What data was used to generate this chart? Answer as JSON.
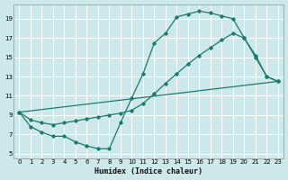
{
  "xlabel": "Humidex (Indice chaleur)",
  "bg_color": "#cce8ea",
  "grid_color": "#ffffff",
  "line_color": "#1e7a6d",
  "xlim": [
    -0.5,
    23.5
  ],
  "ylim": [
    4.5,
    20.5
  ],
  "xticks": [
    0,
    1,
    2,
    3,
    4,
    5,
    6,
    7,
    8,
    9,
    10,
    11,
    12,
    13,
    14,
    15,
    16,
    17,
    18,
    19,
    20,
    21,
    22,
    23
  ],
  "yticks": [
    5,
    7,
    9,
    11,
    13,
    15,
    17,
    19
  ],
  "line1_x": [
    0,
    1,
    2,
    3,
    4,
    5,
    6,
    7,
    8,
    9,
    10,
    11,
    12,
    13,
    14,
    15,
    16,
    17,
    18,
    19,
    20,
    21,
    22,
    23
  ],
  "line1_y": [
    9.3,
    7.8,
    7.2,
    6.8,
    6.8,
    6.2,
    5.8,
    5.5,
    5.5,
    8.2,
    10.8,
    13.3,
    16.5,
    17.5,
    19.2,
    19.5,
    19.8,
    19.6,
    19.3,
    19.0,
    17.0,
    15.2,
    13.0,
    12.5
  ],
  "line2_x": [
    0,
    23
  ],
  "line2_y": [
    9.3,
    12.5
  ],
  "line3_x": [
    0,
    1,
    2,
    3,
    4,
    5,
    6,
    7,
    8,
    9,
    10,
    11,
    12,
    13,
    14,
    15,
    16,
    17,
    18,
    19,
    20,
    21,
    22,
    23
  ],
  "line3_y": [
    9.3,
    8.5,
    8.2,
    8.0,
    8.2,
    8.4,
    8.6,
    8.8,
    9.0,
    9.2,
    9.5,
    10.2,
    11.2,
    12.3,
    13.3,
    14.3,
    15.2,
    16.0,
    16.8,
    17.5,
    17.0,
    15.0,
    13.0,
    12.5
  ]
}
